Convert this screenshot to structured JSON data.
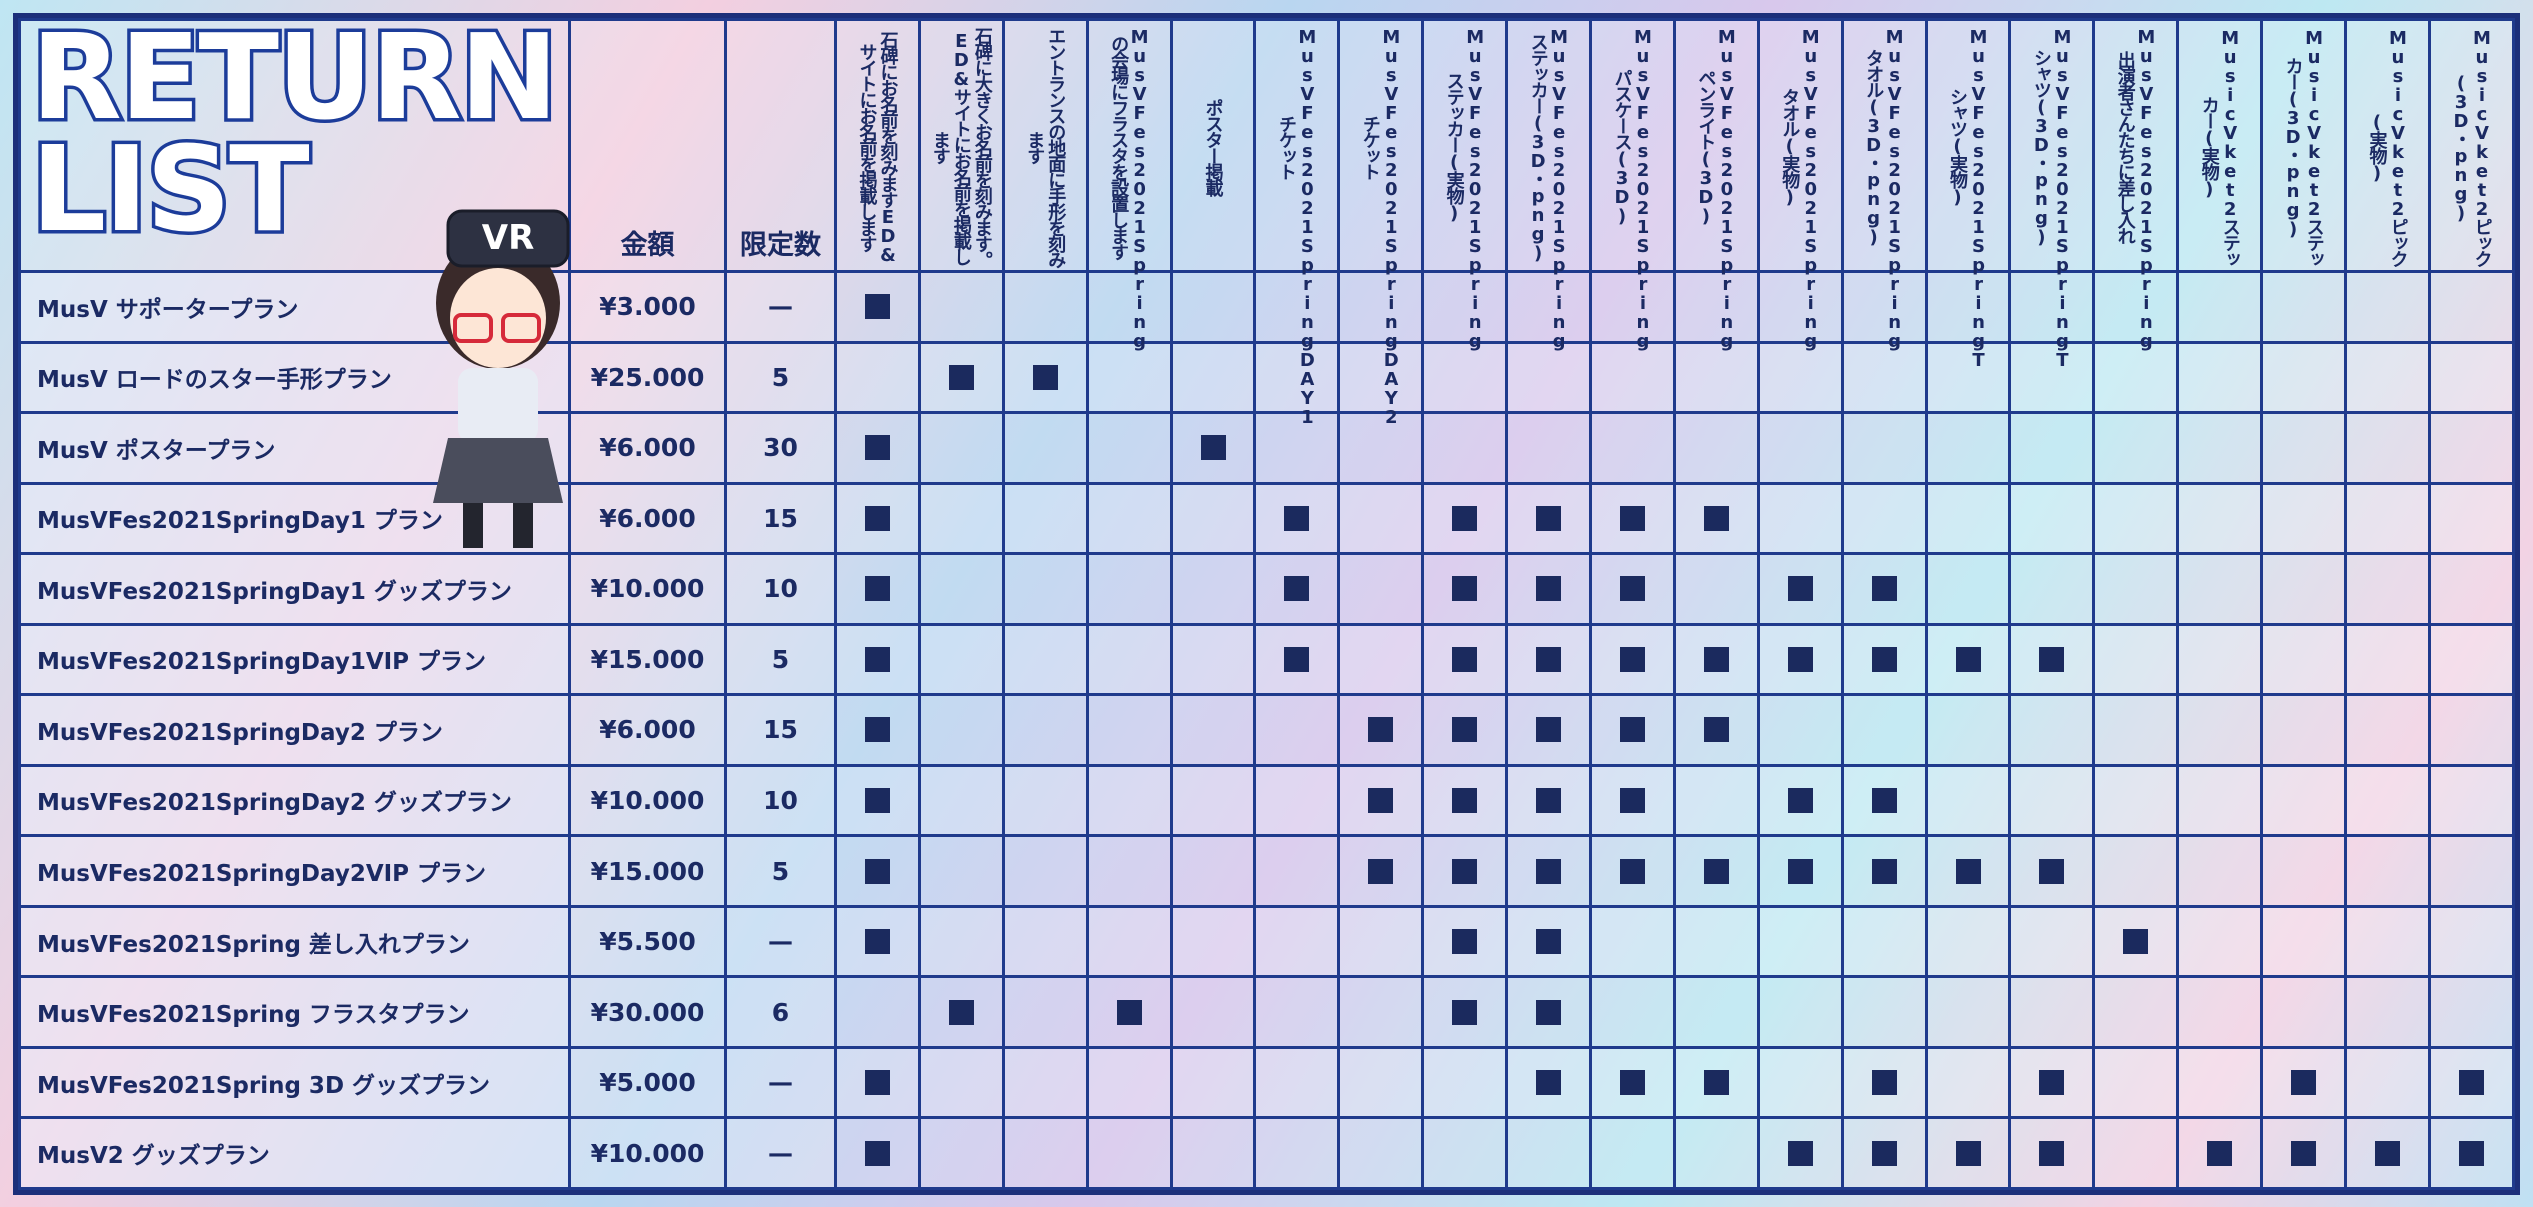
{
  "title": [
    "RETURN",
    "LIST"
  ],
  "columns": {
    "price": "金額",
    "limit": "限定数",
    "rewards": [
      "石碑にお名前を刻みますED&サイトにお名前を掲載します",
      "石碑に大きくお名前を刻みます。ED&サイトにお名前を掲載します",
      "エントランスの地面に手形を刻みます",
      "MusVFes2021Springの会場にフラスタを設置します",
      "ポスター掲載",
      "MusVFes2021SpringDAY1チケット",
      "MusVFes2021SpringDAY2チケット",
      "MusVFes2021Springステッカー(実物)",
      "MusVFes2021Springステッカー(3D・png)",
      "MusVFes2021Springパスケース(3D)",
      "MusVFes2021Springペンライト(3D)",
      "MusVFes2021Springタオル(実物)",
      "MusVFes2021Springタオル(3D・png)",
      "MusVFes2021SpringTシャツ(実物)",
      "MusVFes2021SpringTシャツ(3D・png)",
      "MusVFes2021Spring出演者さんたちに差し入れ",
      "MusicVket2ステッカー(実物)",
      "MusicVket2ステッカー(3D・png)",
      "MusicVket2ピック(実物)",
      "MusicVket2ピック(3D・png)"
    ]
  },
  "rows": [
    {
      "name": "MusV サポータープラン",
      "price": "¥3.000",
      "limit": "—",
      "marks": [
        1,
        0,
        0,
        0,
        0,
        0,
        0,
        0,
        0,
        0,
        0,
        0,
        0,
        0,
        0,
        0,
        0,
        0,
        0,
        0
      ]
    },
    {
      "name": "MusV ロードのスター手形プラン",
      "price": "¥25.000",
      "limit": "5",
      "marks": [
        0,
        1,
        1,
        0,
        0,
        0,
        0,
        0,
        0,
        0,
        0,
        0,
        0,
        0,
        0,
        0,
        0,
        0,
        0,
        0
      ]
    },
    {
      "name": "MusV ポスタープラン",
      "price": "¥6.000",
      "limit": "30",
      "marks": [
        1,
        0,
        0,
        0,
        1,
        0,
        0,
        0,
        0,
        0,
        0,
        0,
        0,
        0,
        0,
        0,
        0,
        0,
        0,
        0
      ]
    },
    {
      "name": "MusVFes2021SpringDay1 プラン",
      "price": "¥6.000",
      "limit": "15",
      "marks": [
        1,
        0,
        0,
        0,
        0,
        1,
        0,
        1,
        1,
        1,
        1,
        0,
        0,
        0,
        0,
        0,
        0,
        0,
        0,
        0
      ]
    },
    {
      "name": "MusVFes2021SpringDay1 グッズプラン",
      "price": "¥10.000",
      "limit": "10",
      "marks": [
        1,
        0,
        0,
        0,
        0,
        1,
        0,
        1,
        1,
        1,
        0,
        1,
        1,
        0,
        0,
        0,
        0,
        0,
        0,
        0
      ]
    },
    {
      "name": "MusVFes2021SpringDay1VIP プラン",
      "price": "¥15.000",
      "limit": "5",
      "marks": [
        1,
        0,
        0,
        0,
        0,
        1,
        0,
        1,
        1,
        1,
        1,
        1,
        1,
        1,
        1,
        0,
        0,
        0,
        0,
        0
      ]
    },
    {
      "name": "MusVFes2021SpringDay2 プラン",
      "price": "¥6.000",
      "limit": "15",
      "marks": [
        1,
        0,
        0,
        0,
        0,
        0,
        1,
        1,
        1,
        1,
        1,
        0,
        0,
        0,
        0,
        0,
        0,
        0,
        0,
        0
      ]
    },
    {
      "name": "MusVFes2021SpringDay2 グッズプラン",
      "price": "¥10.000",
      "limit": "10",
      "marks": [
        1,
        0,
        0,
        0,
        0,
        0,
        1,
        1,
        1,
        1,
        0,
        1,
        1,
        0,
        0,
        0,
        0,
        0,
        0,
        0
      ]
    },
    {
      "name": "MusVFes2021SpringDay2VIP プラン",
      "price": "¥15.000",
      "limit": "5",
      "marks": [
        1,
        0,
        0,
        0,
        0,
        0,
        1,
        1,
        1,
        1,
        1,
        1,
        1,
        1,
        1,
        0,
        0,
        0,
        0,
        0
      ]
    },
    {
      "name": "MusVFes2021Spring 差し入れプラン",
      "price": "¥5.500",
      "limit": "—",
      "marks": [
        1,
        0,
        0,
        0,
        0,
        0,
        0,
        1,
        1,
        0,
        0,
        0,
        0,
        0,
        0,
        1,
        0,
        0,
        0,
        0
      ]
    },
    {
      "name": "MusVFes2021Spring フラスタプラン",
      "price": "¥30.000",
      "limit": "6",
      "marks": [
        0,
        1,
        0,
        1,
        0,
        0,
        0,
        1,
        1,
        0,
        0,
        0,
        0,
        0,
        0,
        0,
        0,
        0,
        0,
        0
      ]
    },
    {
      "name": "MusVFes2021Spring 3D グッズプラン",
      "price": "¥5.000",
      "limit": "—",
      "marks": [
        1,
        0,
        0,
        0,
        0,
        0,
        0,
        0,
        1,
        1,
        1,
        0,
        1,
        0,
        1,
        0,
        0,
        1,
        0,
        1
      ]
    },
    {
      "name": "MusV2 グッズプラン",
      "price": "¥10.000",
      "limit": "—",
      "marks": [
        1,
        0,
        0,
        0,
        0,
        0,
        0,
        0,
        0,
        0,
        0,
        1,
        1,
        1,
        1,
        0,
        1,
        1,
        1,
        1
      ]
    }
  ]
}
